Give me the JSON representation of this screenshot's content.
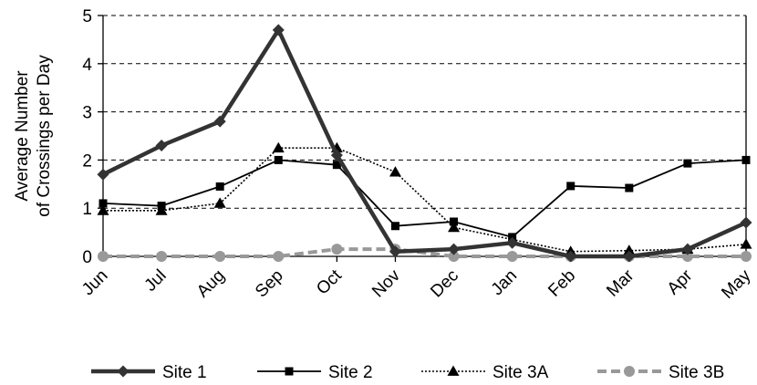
{
  "chart_data": {
    "type": "line",
    "title": "",
    "xlabel": "",
    "ylabel": "Average Number of Crossings per Day",
    "ylabel_lines": [
      "Average Number",
      "of Crossings per Day"
    ],
    "ylim": [
      0,
      5
    ],
    "yticks": [
      0,
      1,
      2,
      3,
      4,
      5
    ],
    "grid": "horizontal dashed",
    "legend_position": "bottom",
    "categories": [
      "Jun",
      "Jul",
      "Aug",
      "Sep",
      "Oct",
      "Nov",
      "Dec",
      "Jan",
      "Feb",
      "Mar",
      "Apr",
      "May"
    ],
    "series": [
      {
        "name": "Site 1",
        "color": "#333333",
        "line_style": "solid-thick",
        "marker": "diamond",
        "values": [
          1.7,
          2.3,
          2.8,
          4.7,
          2.1,
          0.1,
          0.15,
          0.28,
          0.0,
          0.0,
          0.15,
          0.7
        ]
      },
      {
        "name": "Site 2",
        "color": "#000000",
        "line_style": "solid",
        "marker": "square",
        "values": [
          1.1,
          1.05,
          1.45,
          2.0,
          1.9,
          0.63,
          0.72,
          0.4,
          1.46,
          1.42,
          1.93,
          2.0
        ]
      },
      {
        "name": "Site 3A",
        "color": "#000000",
        "line_style": "dotted",
        "marker": "triangle",
        "values": [
          0.95,
          0.95,
          1.1,
          2.25,
          2.25,
          1.75,
          0.6,
          0.35,
          0.1,
          0.12,
          0.15,
          0.25
        ]
      },
      {
        "name": "Site 3B",
        "color": "#999999",
        "line_style": "dashed-thick",
        "marker": "circle",
        "values": [
          0.0,
          0.0,
          0.0,
          0.0,
          0.15,
          0.15,
          0.0,
          0.0,
          0.0,
          0.0,
          0.0,
          0.0
        ]
      }
    ]
  }
}
